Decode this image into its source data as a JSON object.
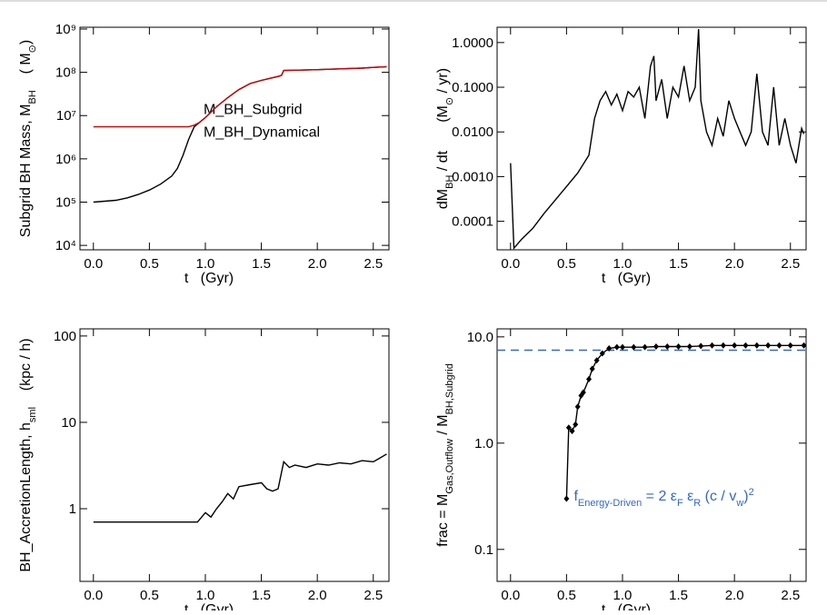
{
  "chart_data": [
    {
      "type": "line",
      "xlabel": "t   (Gyr)",
      "ylabel": [
        {
          "text": "Subgrid BH Mass, M"
        },
        {
          "text": "BH",
          "sub": true
        },
        {
          "text": "    ( M"
        },
        {
          "text": "⊙",
          "sub": true
        },
        {
          "text": ")"
        }
      ],
      "log_y": true,
      "legend": "center",
      "xlim": [
        -0.12,
        2.64
      ],
      "xticks": [
        {
          "value": 0,
          "label": "0.0"
        },
        0.5,
        {
          "value": 1,
          "label": "1.0"
        },
        1.5,
        {
          "value": 2,
          "label": "2.0"
        },
        2.5
      ],
      "ylim": [
        7900,
        1100000000
      ],
      "yticks": [
        {
          "value": 10000,
          "label": "10⁴"
        },
        {
          "value": 100000,
          "label": "10⁵"
        },
        {
          "value": 1000000,
          "label": "10⁶"
        },
        {
          "value": 10000000,
          "label": "10⁷"
        },
        {
          "value": 100000000,
          "label": "10⁸"
        },
        {
          "value": 1000000000,
          "label": "10⁹"
        }
      ],
      "x": [
        0,
        0.1,
        0.2,
        0.3,
        0.4,
        0.5,
        0.6,
        0.7,
        0.75,
        0.8,
        0.85,
        0.9,
        0.95,
        1.0,
        1.05,
        1.1,
        1.2,
        1.3,
        1.4,
        1.5,
        1.6,
        1.65,
        1.68,
        1.7,
        1.8,
        2.0,
        2.2,
        2.4,
        2.5,
        2.62
      ],
      "series": [
        {
          "name": "M_BH_Subgrid",
          "color": "#000000",
          "values": [
            100000,
            105000,
            110000,
            125000,
            150000,
            190000,
            260000,
            400000,
            600000,
            1200000,
            2800000,
            5500000,
            7000000,
            9000000,
            12000000,
            16000000,
            26000000,
            40000000,
            55000000,
            65000000,
            75000000,
            80000000,
            85000000,
            110000000,
            112000000,
            115000000,
            120000000,
            125000000,
            130000000,
            135000000
          ]
        },
        {
          "name": "M_BH_Dynamical",
          "color": "#cc0000",
          "values": [
            5500000,
            5500000,
            5500000,
            5500000,
            5500000,
            5500000,
            5500000,
            5500000,
            5500000,
            5500000,
            5500000,
            6000000,
            7000000,
            9000000,
            12000000,
            16000000,
            26000000,
            40000000,
            55000000,
            65000000,
            75000000,
            80000000,
            85000000,
            110000000,
            112000000,
            115000000,
            120000000,
            125000000,
            130000000,
            135000000
          ]
        }
      ]
    },
    {
      "type": "line",
      "xlabel": "t   (Gyr)",
      "ylabel": [
        {
          "text": "dM"
        },
        {
          "text": "BH",
          "sub": true
        },
        {
          "text": " / dt       (M"
        },
        {
          "text": "⊙",
          "sub": true
        },
        {
          "text": " / yr)"
        }
      ],
      "log_y": true,
      "xlim": [
        -0.12,
        2.64
      ],
      "xticks": [
        {
          "value": 0,
          "label": "0.0"
        },
        0.5,
        {
          "value": 1,
          "label": "1.0"
        },
        1.5,
        {
          "value": 2,
          "label": "2.0"
        },
        2.5
      ],
      "ylim": [
        2.3e-05,
        2.2
      ],
      "yticks": [
        {
          "value": 0.0001,
          "label": "0.0001"
        },
        {
          "value": 0.001,
          "label": "0.0010"
        },
        {
          "value": 0.01,
          "label": "0.0100"
        },
        {
          "value": 0.1,
          "label": "0.1000"
        },
        {
          "value": 1,
          "label": "1.0000"
        }
      ],
      "x": [
        0,
        0.03,
        0.1,
        0.2,
        0.3,
        0.4,
        0.5,
        0.6,
        0.7,
        0.75,
        0.8,
        0.85,
        0.9,
        0.95,
        1.0,
        1.05,
        1.1,
        1.15,
        1.2,
        1.25,
        1.28,
        1.3,
        1.35,
        1.4,
        1.45,
        1.5,
        1.55,
        1.6,
        1.65,
        1.68,
        1.7,
        1.75,
        1.8,
        1.85,
        1.9,
        1.95,
        2.0,
        2.05,
        2.1,
        2.15,
        2.2,
        2.25,
        2.3,
        2.35,
        2.4,
        2.45,
        2.5,
        2.55,
        2.6,
        2.62
      ],
      "series": [
        {
          "color": "#000000",
          "values": [
            0.002,
            2.5e-05,
            4e-05,
            7e-05,
            0.00015,
            0.0003,
            0.0006,
            0.0012,
            0.003,
            0.02,
            0.05,
            0.08,
            0.04,
            0.07,
            0.03,
            0.08,
            0.06,
            0.1,
            0.02,
            0.3,
            0.5,
            0.05,
            0.15,
            0.02,
            0.1,
            0.06,
            0.3,
            0.05,
            0.1,
            2.0,
            0.05,
            0.01,
            0.005,
            0.02,
            0.008,
            0.05,
            0.02,
            0.01,
            0.005,
            0.01,
            0.2,
            0.01,
            0.005,
            0.1,
            0.005,
            0.02,
            0.005,
            0.002,
            0.012,
            0.009
          ]
        }
      ]
    },
    {
      "type": "line",
      "xlabel": "t   (Gyr)",
      "ylabel": [
        {
          "text": "BH_AccretionLength, h"
        },
        {
          "text": "sml",
          "sub": true
        },
        {
          "text": "    (kpc / h)"
        }
      ],
      "log_y": true,
      "xlim": [
        -0.12,
        2.64
      ],
      "xticks": [
        {
          "value": 0,
          "label": "0.0"
        },
        0.5,
        {
          "value": 1,
          "label": "1.0"
        },
        1.5,
        {
          "value": 2,
          "label": "2.0"
        },
        2.5
      ],
      "ylim": [
        0.144,
        121
      ],
      "yticks": [
        1,
        10,
        100
      ],
      "x": [
        0,
        0.93,
        1.0,
        1.05,
        1.1,
        1.15,
        1.2,
        1.25,
        1.3,
        1.4,
        1.5,
        1.55,
        1.6,
        1.65,
        1.7,
        1.75,
        1.8,
        1.9,
        2.0,
        2.1,
        2.2,
        2.3,
        2.4,
        2.5,
        2.55,
        2.62
      ],
      "series": [
        {
          "color": "#000000",
          "values": [
            0.7,
            0.7,
            0.9,
            0.8,
            1.0,
            1.2,
            1.5,
            1.3,
            1.8,
            1.9,
            2.0,
            1.7,
            1.6,
            1.7,
            3.5,
            3.0,
            3.2,
            3.0,
            3.3,
            3.2,
            3.4,
            3.3,
            3.6,
            3.5,
            3.8,
            4.3
          ]
        }
      ]
    },
    {
      "type": "line",
      "xlabel": "t   (Gyr)",
      "ylabel": [
        {
          "text": "frac = M"
        },
        {
          "text": "Gas,Outflow",
          "sub": true
        },
        {
          "text": " / M"
        },
        {
          "text": "BH,Subgrid",
          "sub": true
        }
      ],
      "log_y": true,
      "markers": "diamond",
      "xlim": [
        -0.12,
        2.64
      ],
      "xticks": [
        {
          "value": 0,
          "label": "0.0"
        },
        0.5,
        {
          "value": 1,
          "label": "1.0"
        },
        1.5,
        {
          "value": 2,
          "label": "2.0"
        },
        2.5
      ],
      "ylim": [
        0.05,
        11.9
      ],
      "yticks": [
        0.1,
        {
          "value": 1,
          "label": "1.0"
        },
        {
          "value": 10,
          "label": "10.0"
        }
      ],
      "x": [
        0.5,
        0.52,
        0.55,
        0.58,
        0.6,
        0.63,
        0.65,
        0.7,
        0.73,
        0.77,
        0.82,
        0.88,
        0.95,
        1.0,
        1.1,
        1.2,
        1.3,
        1.4,
        1.5,
        1.6,
        1.7,
        1.8,
        1.9,
        2.0,
        2.1,
        2.2,
        2.3,
        2.4,
        2.5,
        2.62
      ],
      "series": [
        {
          "color": "#000000",
          "values": [
            0.3,
            1.4,
            1.3,
            1.5,
            2.2,
            2.8,
            3.0,
            4.0,
            5.0,
            6.0,
            7.0,
            7.8,
            8.0,
            8.0,
            8.0,
            8.0,
            8.1,
            8.1,
            8.1,
            8.1,
            8.2,
            8.3,
            8.3,
            8.3,
            8.3,
            8.3,
            8.3,
            8.3,
            8.3,
            8.3
          ]
        }
      ],
      "hline": {
        "value": 7.5,
        "color": "#3366cc"
      },
      "annotation": [
        {
          "text": "f"
        },
        {
          "text": "Energy-Driven",
          "sub": true
        },
        {
          "text": " = 2 ε"
        },
        {
          "text": "F",
          "sub": true
        },
        {
          "text": " ε"
        },
        {
          "text": "R",
          "sub": true
        },
        {
          "text": " (c / v"
        },
        {
          "text": "w",
          "sub": true
        },
        {
          "text": ")"
        },
        {
          "text": "2",
          "sup": true
        }
      ]
    }
  ]
}
